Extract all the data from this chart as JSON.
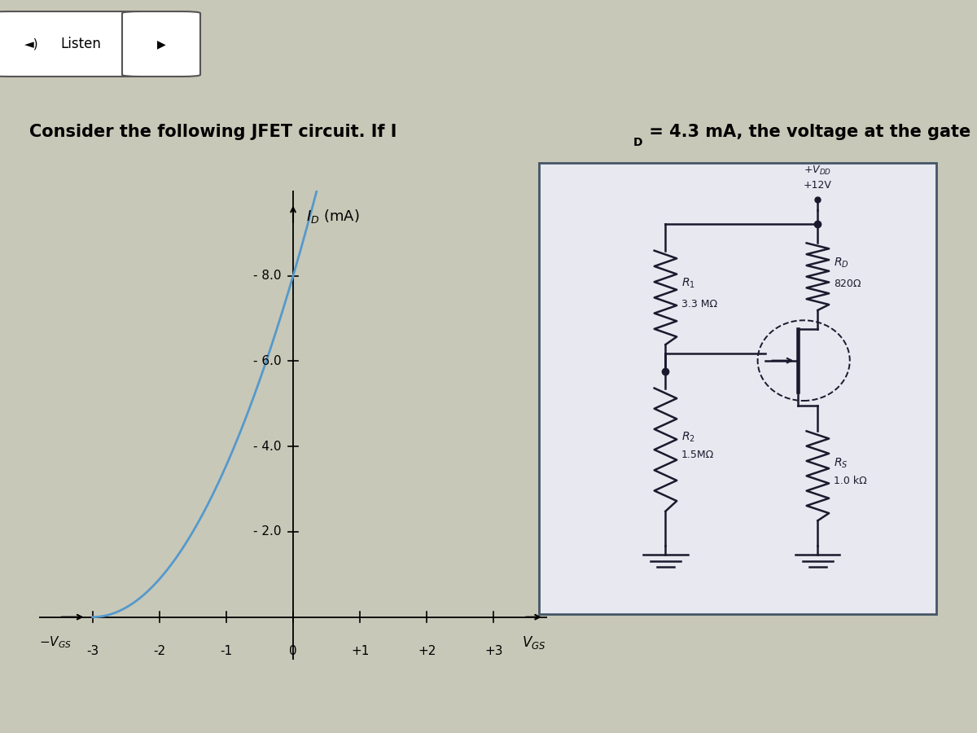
{
  "bg_color": "#c8c8b8",
  "header_bg": "#d4d0c8",
  "plot_bg": "#c8d0dc",
  "curve_color": "#5599cc",
  "curve_linewidth": 2.0,
  "idss": 8.0,
  "vp": -3.0,
  "x_ticks": [
    -3,
    -2,
    -1,
    0,
    1,
    2,
    3
  ],
  "x_tick_labels": [
    "-3",
    "-2",
    "-1",
    "0",
    "+1",
    "+2",
    "+3"
  ],
  "y_ticks": [
    0,
    2.0,
    4.0,
    6.0,
    8.0
  ],
  "y_tick_labels": [
    "",
    "2.0",
    "4.0",
    "6.0",
    "8.0"
  ],
  "xlim": [
    -3.8,
    3.8
  ],
  "ylim": [
    -1.0,
    10.0
  ],
  "circuit_box_color": "#e8e8f0",
  "circuit_line_color": "#1a1a2e"
}
